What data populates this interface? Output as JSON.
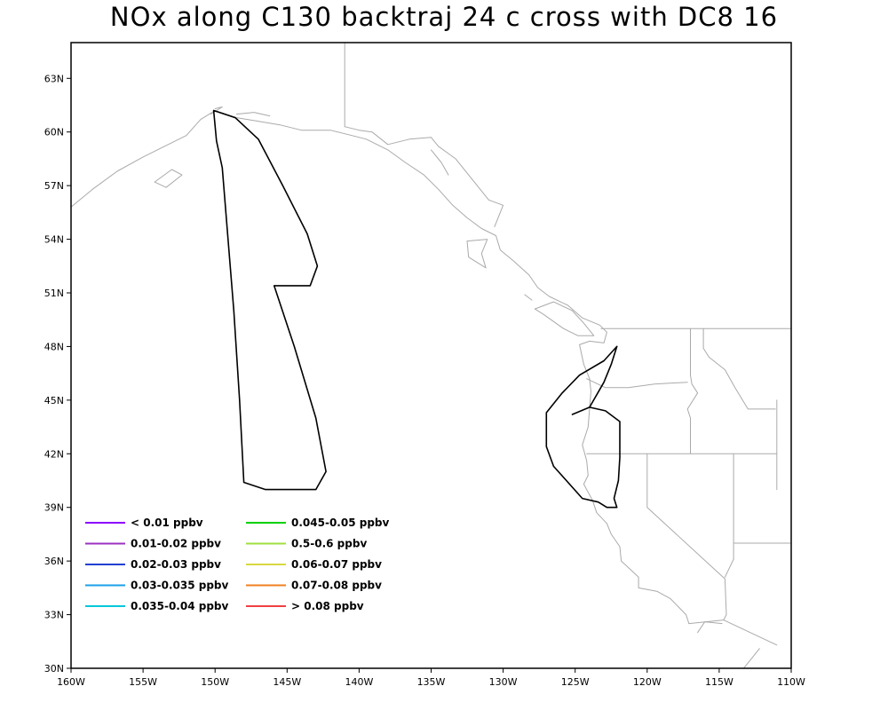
{
  "title": "NOx along C130 backtraj 24 c cross with DC8 16",
  "map": {
    "lon_range": [
      -160,
      -110
    ],
    "lat_range": [
      30,
      65
    ],
    "lon_ticks": [
      {
        "value": -160,
        "label": "160W"
      },
      {
        "value": -155,
        "label": "155W"
      },
      {
        "value": -150,
        "label": "150W"
      },
      {
        "value": -145,
        "label": "145W"
      },
      {
        "value": -140,
        "label": "140W"
      },
      {
        "value": -135,
        "label": "135W"
      },
      {
        "value": -130,
        "label": "130W"
      },
      {
        "value": -125,
        "label": "125W"
      },
      {
        "value": -120,
        "label": "120W"
      },
      {
        "value": -115,
        "label": "115W"
      },
      {
        "value": -110,
        "label": "110W"
      }
    ],
    "lat_ticks": [
      {
        "value": 30,
        "label": "30N"
      },
      {
        "value": 33,
        "label": "33N"
      },
      {
        "value": 36,
        "label": "36N"
      },
      {
        "value": 39,
        "label": "39N"
      },
      {
        "value": 42,
        "label": "42N"
      },
      {
        "value": 45,
        "label": "45N"
      },
      {
        "value": 48,
        "label": "48N"
      },
      {
        "value": 51,
        "label": "51N"
      },
      {
        "value": 54,
        "label": "54N"
      },
      {
        "value": 57,
        "label": "57N"
      },
      {
        "value": 60,
        "label": "60N"
      },
      {
        "value": 63,
        "label": "63N"
      }
    ],
    "coastline_color": "#aaaaaa",
    "trajectory_color": "#000000",
    "coastlines": [
      [
        [
          -160,
          55.8
        ],
        [
          -158.5,
          56.8
        ],
        [
          -156.8,
          57.8
        ],
        [
          -155,
          58.6
        ],
        [
          -153.5,
          59.2
        ],
        [
          -152,
          59.8
        ],
        [
          -151,
          60.7
        ],
        [
          -150,
          61.2
        ],
        [
          -148.5,
          60.8
        ],
        [
          -147,
          60.6
        ],
        [
          -145.5,
          60.4
        ],
        [
          -144,
          60.1
        ],
        [
          -142,
          60.1
        ],
        [
          -140.5,
          59.8
        ],
        [
          -139.5,
          59.6
        ],
        [
          -138,
          59.0
        ],
        [
          -136.8,
          58.3
        ],
        [
          -135.5,
          57.6
        ],
        [
          -134.5,
          56.8
        ],
        [
          -133.5,
          55.9
        ],
        [
          -132.5,
          55.2
        ],
        [
          -131.5,
          54.6
        ],
        [
          -130.5,
          54.2
        ],
        [
          -130.2,
          53.4
        ],
        [
          -129.3,
          52.8
        ],
        [
          -128.2,
          52.0
        ],
        [
          -127.6,
          51.3
        ],
        [
          -126.8,
          50.8
        ],
        [
          -125.5,
          50.3
        ],
        [
          -124.5,
          49.6
        ],
        [
          -123.3,
          49.2
        ],
        [
          -122.8,
          48.8
        ],
        [
          -123.0,
          48.2
        ],
        [
          -124.0,
          48.3
        ],
        [
          -124.7,
          48.1
        ],
        [
          -124.4,
          47.0
        ],
        [
          -124.0,
          46.2
        ],
        [
          -123.9,
          45.5
        ],
        [
          -124.0,
          44.5
        ],
        [
          -124.1,
          43.5
        ],
        [
          -124.5,
          42.5
        ],
        [
          -124.2,
          41.6
        ],
        [
          -124.1,
          40.8
        ],
        [
          -124.4,
          40.3
        ],
        [
          -123.8,
          39.4
        ],
        [
          -123.5,
          38.7
        ],
        [
          -122.8,
          38.1
        ],
        [
          -122.5,
          37.5
        ],
        [
          -121.9,
          36.8
        ],
        [
          -121.8,
          36.0
        ],
        [
          -120.6,
          35.1
        ],
        [
          -120.6,
          34.5
        ],
        [
          -119.3,
          34.3
        ],
        [
          -118.4,
          33.9
        ],
        [
          -117.3,
          33.0
        ],
        [
          -117.1,
          32.5
        ]
      ],
      [
        [
          -127.8,
          50.1
        ],
        [
          -126.5,
          50.5
        ],
        [
          -125.2,
          50.0
        ],
        [
          -124.4,
          49.3
        ],
        [
          -123.7,
          48.6
        ],
        [
          -124.8,
          48.6
        ],
        [
          -125.8,
          49.0
        ],
        [
          -127.2,
          49.8
        ],
        [
          -127.8,
          50.1
        ]
      ],
      [
        [
          -131.1,
          54.0
        ],
        [
          -132.5,
          53.9
        ],
        [
          -132.4,
          53.0
        ],
        [
          -131.2,
          52.4
        ],
        [
          -131.5,
          53.2
        ],
        [
          -131.1,
          54.0
        ]
      ],
      [
        [
          -113.5,
          29.8
        ],
        [
          -112.8,
          30.5
        ],
        [
          -112.2,
          31.1
        ]
      ],
      [
        [
          -116.5,
          32.0
        ],
        [
          -116.0,
          32.6
        ],
        [
          -114.8,
          32.5
        ]
      ],
      [
        [
          -154.2,
          57.2
        ],
        [
          -153.0,
          57.9
        ],
        [
          -152.3,
          57.6
        ],
        [
          -153.4,
          56.9
        ],
        [
          -154.2,
          57.2
        ]
      ],
      [
        [
          -148.5,
          61.0
        ],
        [
          -147.3,
          61.1
        ],
        [
          -146.2,
          60.9
        ]
      ],
      [
        [
          -135.0,
          59.0
        ],
        [
          -134.3,
          58.3
        ],
        [
          -133.8,
          57.6
        ]
      ],
      [
        [
          -128.5,
          50.9
        ],
        [
          -128.0,
          50.6
        ]
      ],
      [
        [
          -150.3,
          61.0
        ],
        [
          -149.5,
          61.4
        ],
        [
          -150.0,
          61.3
        ]
      ]
    ],
    "borders": [
      [
        [
          -141,
          60.3
        ],
        [
          -141,
          65
        ]
      ],
      [
        [
          -141,
          60.3
        ],
        [
          -140,
          60.1
        ],
        [
          -139.1,
          60.0
        ],
        [
          -138,
          59.3
        ],
        [
          -136.5,
          59.6
        ],
        [
          -135,
          59.7
        ],
        [
          -134.5,
          59.2
        ],
        [
          -133.3,
          58.5
        ],
        [
          -132.2,
          57.4
        ],
        [
          -131,
          56.2
        ],
        [
          -130.0,
          55.9
        ],
        [
          -130.6,
          54.7
        ]
      ],
      [
        [
          -123.2,
          49
        ],
        [
          -110,
          49
        ]
      ],
      [
        [
          -117.0,
          49
        ],
        [
          -117.0,
          46.4
        ],
        [
          -116.9,
          45.9
        ],
        [
          -116.5,
          45.4
        ],
        [
          -117.2,
          44.5
        ],
        [
          -117.0,
          44.0
        ],
        [
          -117.0,
          42.0
        ]
      ],
      [
        [
          -124.2,
          46.2
        ],
        [
          -122.9,
          45.7
        ],
        [
          -121.3,
          45.7
        ],
        [
          -119.5,
          45.9
        ],
        [
          -117.2,
          46.0
        ]
      ],
      [
        [
          -124.2,
          42.0
        ],
        [
          -111,
          42.0
        ]
      ],
      [
        [
          -120,
          42
        ],
        [
          -120,
          39
        ],
        [
          -114.6,
          35.0
        ],
        [
          -114.5,
          33.0
        ],
        [
          -114.7,
          32.7
        ]
      ],
      [
        [
          -114.6,
          35.1
        ],
        [
          -114.0,
          36.1
        ],
        [
          -114.0,
          37.0
        ],
        [
          -114.0,
          42.0
        ]
      ],
      [
        [
          -116.1,
          49
        ],
        [
          -116.1,
          47.9
        ],
        [
          -115.7,
          47.4
        ],
        [
          -114.6,
          46.7
        ],
        [
          -113.9,
          45.7
        ],
        [
          -113.0,
          44.5
        ],
        [
          -111.1,
          44.5
        ]
      ],
      [
        [
          -111,
          45
        ],
        [
          -111,
          40
        ]
      ],
      [
        [
          -117.1,
          32.5
        ],
        [
          -114.7,
          32.7
        ],
        [
          -111,
          31.3
        ]
      ],
      [
        [
          -114,
          37
        ],
        [
          -110,
          37
        ]
      ]
    ],
    "trajectories": [
      [
        [
          -150.1,
          61.2
        ],
        [
          -148.6,
          60.8
        ],
        [
          -147.0,
          59.6
        ],
        [
          -145.3,
          57.0
        ],
        [
          -143.6,
          54.3
        ],
        [
          -142.9,
          52.5
        ],
        [
          -143.4,
          51.4
        ],
        [
          -145.9,
          51.4
        ],
        [
          -144.5,
          48.0
        ],
        [
          -143.0,
          44.0
        ],
        [
          -142.3,
          41.0
        ],
        [
          -143.0,
          40.0
        ],
        [
          -146.5,
          40.0
        ],
        [
          -148.0,
          40.4
        ],
        [
          -148.3,
          45.0
        ],
        [
          -148.7,
          50.0
        ],
        [
          -149.5,
          58.0
        ],
        [
          -149.9,
          59.5
        ],
        [
          -150.1,
          61.2
        ]
      ],
      [
        [
          -122.1,
          48.0
        ],
        [
          -123.0,
          47.2
        ],
        [
          -124.7,
          46.4
        ],
        [
          -125.9,
          45.4
        ],
        [
          -127.0,
          44.3
        ],
        [
          -127.0,
          42.4
        ],
        [
          -126.5,
          41.3
        ],
        [
          -124.5,
          39.5
        ],
        [
          -123.4,
          39.3
        ],
        [
          -122.8,
          39.0
        ],
        [
          -122.1,
          39.0
        ],
        [
          -122.3,
          39.5
        ],
        [
          -122.0,
          40.5
        ],
        [
          -121.9,
          41.8
        ],
        [
          -121.9,
          43.8
        ],
        [
          -122.9,
          44.4
        ],
        [
          -124.0,
          44.6
        ],
        [
          -125.2,
          44.2
        ],
        [
          -124.0,
          44.6
        ],
        [
          -123.0,
          46.0
        ],
        [
          -122.5,
          47.0
        ],
        [
          -122.1,
          48.0
        ]
      ]
    ]
  },
  "legend": {
    "items": [
      {
        "label": "< 0.01 ppbv",
        "color": "#8b00ff"
      },
      {
        "label": "0.01-0.02 ppbv",
        "color": "#9b30c0"
      },
      {
        "label": "0.02-0.03 ppbv",
        "color": "#2040d0"
      },
      {
        "label": "0.03-0.035 ppbv",
        "color": "#1aa0e8"
      },
      {
        "label": "0.035-0.04 ppbv",
        "color": "#00c8d8"
      },
      {
        "label": "0.045-0.05 ppbv",
        "color": "#00d000"
      },
      {
        "label": "0.5-0.6 ppbv",
        "color": "#a0e040"
      },
      {
        "label": "0.06-0.07 ppbv",
        "color": "#d8d840"
      },
      {
        "label": "0.07-0.08 ppbv",
        "color": "#f08020"
      },
      {
        "label": "> 0.08 ppbv",
        "color": "#f04040"
      }
    ]
  }
}
